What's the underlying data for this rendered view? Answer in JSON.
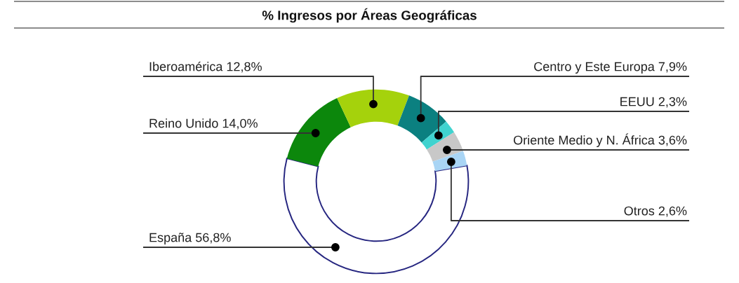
{
  "chart_data": {
    "type": "donut",
    "title": "% Ingresos por Áreas Geográficas",
    "categories": [
      "España",
      "Reino Unido",
      "Iberoamérica",
      "Centro y Este Europa",
      "EEUU",
      "Oriente Medio y N. África",
      "Otros"
    ],
    "values": [
      56.8,
      14.0,
      12.8,
      7.9,
      2.3,
      3.6,
      2.6
    ],
    "colors": [
      "#ffffff",
      "#0c870c",
      "#a5d20c",
      "#0b8080",
      "#3fd3cf",
      "#c8c8c8",
      "#a9d5f5"
    ],
    "value_labels": [
      "56,8%",
      "14,0%",
      "12,8%",
      "7,9%",
      "2,3%",
      "3,6%",
      "2,6%"
    ]
  }
}
